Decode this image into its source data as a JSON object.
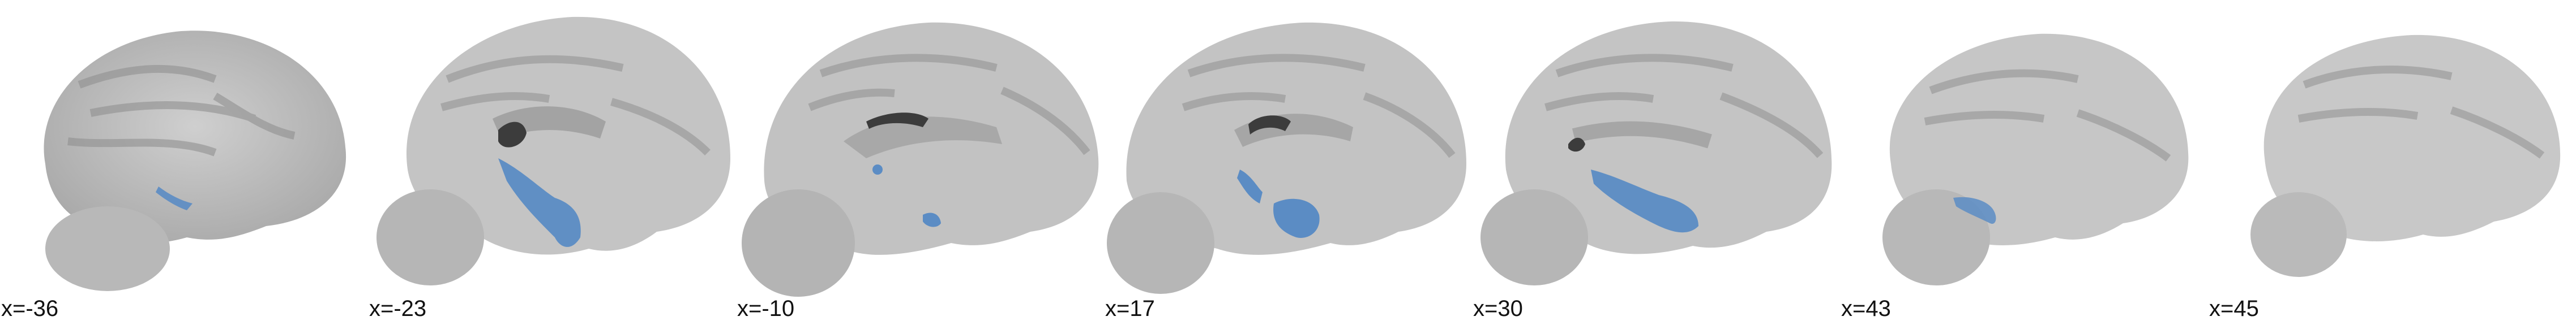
{
  "image": {
    "title": "Sagittal brain slices with blue overlay",
    "overlay_color": "#5B8CC4",
    "brain_color": "#BEBEBE",
    "ventricle_color": "#3C3C3C"
  },
  "slices": [
    {
      "label": "x=-36"
    },
    {
      "label": "x=-23"
    },
    {
      "label": "x=-10"
    },
    {
      "label": "x=17"
    },
    {
      "label": "x=30"
    },
    {
      "label": "x=43"
    },
    {
      "label": "x=45"
    }
  ]
}
